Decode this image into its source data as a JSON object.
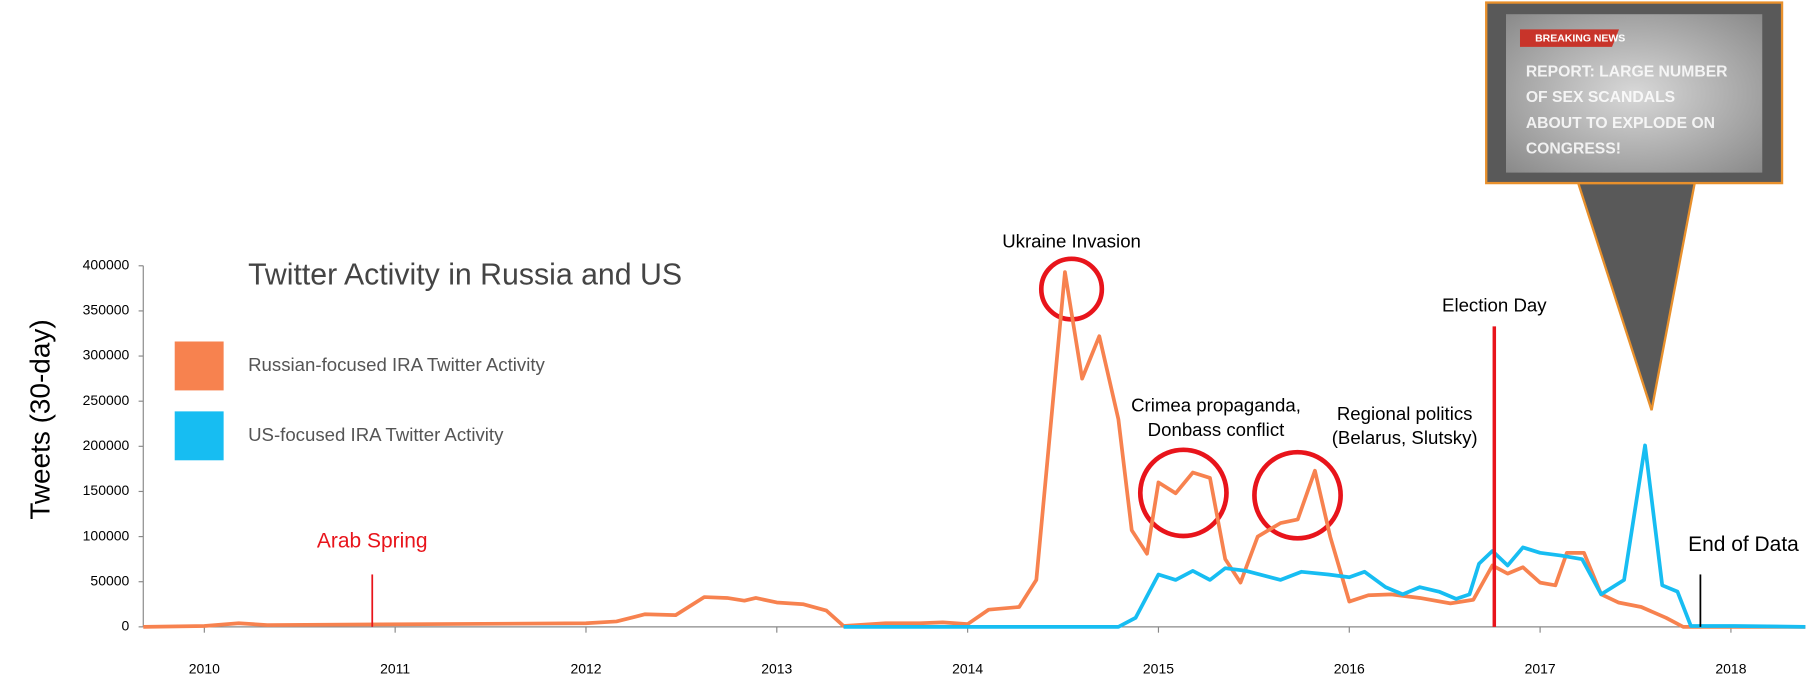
{
  "chart_data": {
    "type": "line",
    "title": "Twitter Activity in Russia and US",
    "y_label": "Tweets (30-day)",
    "xlim": [
      2009.68,
      2018.39
    ],
    "xticks": [
      2010,
      2011,
      2012,
      2013,
      2014,
      2015,
      2016,
      2017,
      2018
    ],
    "ylim": [
      0,
      400000
    ],
    "yticks": [
      0,
      50000,
      100000,
      150000,
      200000,
      250000,
      300000,
      350000,
      400000
    ],
    "series": [
      {
        "name": "Russian-focused IRA Twitter Activity",
        "color": "#f7824f",
        "x": [
          2009.68,
          2010.0,
          2010.18,
          2010.33,
          2012.0,
          2012.16,
          2012.31,
          2012.47,
          2012.62,
          2012.74,
          2012.83,
          2012.89,
          2013.0,
          2013.14,
          2013.26,
          2013.35,
          2013.57,
          2013.75,
          2013.87,
          2014.0,
          2014.11,
          2014.27,
          2014.36,
          2014.51,
          2014.6,
          2014.69,
          2014.79,
          2014.86,
          2014.94,
          2015.0,
          2015.09,
          2015.18,
          2015.27,
          2015.35,
          2015.43,
          2015.52,
          2015.64,
          2015.73,
          2015.82,
          2015.9,
          2016.0,
          2016.1,
          2016.22,
          2016.37,
          2016.53,
          2016.65,
          2016.75,
          2016.83,
          2016.91,
          2017.0,
          2017.08,
          2017.14,
          2017.23,
          2017.32,
          2017.41,
          2017.53,
          2017.66,
          2017.75,
          2018.39
        ],
        "values": [
          0,
          1000,
          4000,
          2000,
          4000,
          6000,
          14000,
          13000,
          33000,
          32000,
          29000,
          32000,
          27000,
          25000,
          18000,
          1000,
          4000,
          4000,
          5000,
          3000,
          19000,
          22000,
          52000,
          393000,
          275000,
          322000,
          230000,
          107000,
          81000,
          160000,
          148000,
          171000,
          165000,
          75000,
          49000,
          100000,
          115000,
          119000,
          173000,
          100000,
          28000,
          35000,
          36000,
          32000,
          26000,
          30000,
          68000,
          59000,
          66000,
          49000,
          46000,
          82000,
          82000,
          36000,
          27000,
          22000,
          10000,
          0,
          0
        ]
      },
      {
        "name": "US-focused IRA Twitter Activity",
        "color": "#17bdf2",
        "x": [
          2013.35,
          2014.79,
          2014.88,
          2015.0,
          2015.09,
          2015.18,
          2015.27,
          2015.35,
          2015.46,
          2015.64,
          2015.75,
          2015.89,
          2016.0,
          2016.08,
          2016.19,
          2016.28,
          2016.37,
          2016.47,
          2016.56,
          2016.63,
          2016.68,
          2016.75,
          2016.83,
          2016.91,
          2017.0,
          2017.11,
          2017.22,
          2017.32,
          2017.44,
          2017.55,
          2017.64,
          2017.72,
          2017.79,
          2018.02,
          2018.39
        ],
        "values": [
          0,
          0,
          10000,
          58000,
          52000,
          62000,
          52000,
          65000,
          62000,
          52000,
          61000,
          58000,
          55000,
          61000,
          44000,
          36000,
          44000,
          39000,
          31000,
          36000,
          70000,
          84000,
          68000,
          88000,
          82000,
          79000,
          75000,
          36000,
          52000,
          201000,
          46000,
          39000,
          1000,
          1000,
          0
        ]
      }
    ],
    "events": [
      {
        "label": "Arab Spring",
        "x": 2010.88,
        "color": "#e8141b"
      },
      {
        "label": "Election Day",
        "x": 2016.76,
        "color": "#e8141b"
      },
      {
        "label": "End of Data",
        "x": 2017.84,
        "color": "#000000"
      }
    ],
    "annotations": [
      {
        "lines": [
          "Ukraine Invasion"
        ]
      },
      {
        "lines": [
          "Crimea propaganda,",
          "Donbass conflict"
        ]
      },
      {
        "lines": [
          "Regional politics",
          "(Belarus, Slutsky)"
        ]
      }
    ],
    "callout": {
      "tag": "BREAKING NEWS",
      "lines": [
        "REPORT: LARGE NUMBER",
        "OF SEX SCANDALS",
        "ABOUT TO EXPLODE ON",
        "CONGRESS!"
      ]
    }
  }
}
